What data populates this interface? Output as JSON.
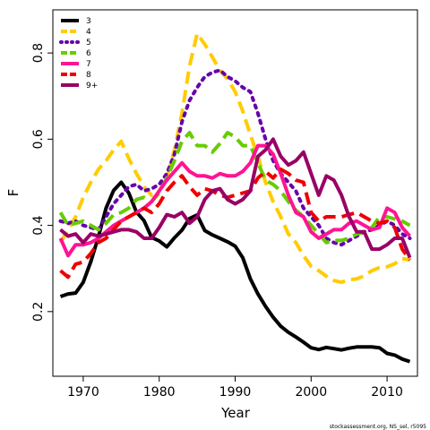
{
  "chart_data": {
    "type": "line",
    "xlabel": "Year",
    "ylabel": "F",
    "xlim": [
      1966,
      2014
    ],
    "ylim": [
      0.05,
      0.9
    ],
    "x_ticks": [
      1970,
      1980,
      1990,
      2000,
      2010
    ],
    "y_ticks": [
      0.2,
      0.4,
      0.6,
      0.8
    ],
    "legend_position": "top-left",
    "credit": "stockassessment.org, NS_sel, r5095",
    "series": [
      {
        "name": "3",
        "color": "#000000",
        "dash": "solid",
        "x": [
          1967,
          1968,
          1969,
          1970,
          1971,
          1972,
          1973,
          1974,
          1975,
          1976,
          1977,
          1978,
          1979,
          1980,
          1981,
          1982,
          1983,
          1984,
          1985,
          1986,
          1987,
          1988,
          1989,
          1990,
          1991,
          1992,
          1993,
          1994,
          1995,
          1996,
          1997,
          1998,
          1999,
          2000,
          2001,
          2002,
          2003,
          2004,
          2005,
          2006,
          2007,
          2008,
          2009,
          2010,
          2011,
          2012,
          2013
        ],
        "y": [
          0.235,
          0.241,
          0.243,
          0.268,
          0.316,
          0.374,
          0.44,
          0.481,
          0.5,
          0.475,
          0.431,
          0.411,
          0.372,
          0.364,
          0.35,
          0.371,
          0.389,
          0.416,
          0.424,
          0.388,
          0.378,
          0.37,
          0.362,
          0.352,
          0.325,
          0.276,
          0.241,
          0.212,
          0.187,
          0.166,
          0.152,
          0.141,
          0.129,
          0.116,
          0.112,
          0.117,
          0.114,
          0.111,
          0.115,
          0.118,
          0.118,
          0.118,
          0.116,
          0.103,
          0.099,
          0.09,
          0.084
        ]
      },
      {
        "name": "4",
        "color": "#ffcc00",
        "dash": "dashed",
        "x": [
          1967,
          1968,
          1969,
          1970,
          1971,
          1972,
          1973,
          1974,
          1975,
          1976,
          1977,
          1978,
          1979,
          1980,
          1981,
          1982,
          1983,
          1984,
          1985,
          1986,
          1987,
          1988,
          1989,
          1990,
          1991,
          1992,
          1993,
          1994,
          1995,
          1996,
          1997,
          1998,
          1999,
          2000,
          2001,
          2002,
          2003,
          2004,
          2005,
          2006,
          2007,
          2008,
          2009,
          2010,
          2011,
          2012,
          2013
        ],
        "y": [
          0.36,
          0.39,
          0.42,
          0.465,
          0.5,
          0.53,
          0.55,
          0.575,
          0.595,
          0.555,
          0.52,
          0.49,
          0.47,
          0.48,
          0.51,
          0.575,
          0.66,
          0.77,
          0.845,
          0.82,
          0.79,
          0.76,
          0.74,
          0.71,
          0.665,
          0.61,
          0.56,
          0.5,
          0.455,
          0.42,
          0.38,
          0.36,
          0.33,
          0.305,
          0.295,
          0.282,
          0.272,
          0.268,
          0.274,
          0.276,
          0.283,
          0.295,
          0.302,
          0.304,
          0.311,
          0.323,
          0.32
        ]
      },
      {
        "name": "5",
        "color": "#6600aa",
        "dash": "dotted",
        "x": [
          1967,
          1968,
          1969,
          1970,
          1971,
          1972,
          1973,
          1974,
          1975,
          1976,
          1977,
          1978,
          1979,
          1980,
          1981,
          1982,
          1983,
          1984,
          1985,
          1986,
          1987,
          1988,
          1989,
          1990,
          1991,
          1992,
          1993,
          1994,
          1995,
          1996,
          1997,
          1998,
          1999,
          2000,
          2001,
          2002,
          2003,
          2004,
          2005,
          2006,
          2007,
          2008,
          2009,
          2010,
          2011,
          2012,
          2013
        ],
        "y": [
          0.41,
          0.405,
          0.41,
          0.4,
          0.395,
          0.39,
          0.42,
          0.45,
          0.47,
          0.49,
          0.495,
          0.48,
          0.485,
          0.495,
          0.52,
          0.565,
          0.64,
          0.69,
          0.72,
          0.745,
          0.755,
          0.76,
          0.745,
          0.735,
          0.72,
          0.71,
          0.66,
          0.6,
          0.55,
          0.52,
          0.5,
          0.48,
          0.44,
          0.42,
          0.4,
          0.37,
          0.36,
          0.355,
          0.365,
          0.375,
          0.385,
          0.39,
          0.4,
          0.41,
          0.4,
          0.38,
          0.37
        ]
      },
      {
        "name": "6",
        "color": "#66cc00",
        "dash": "dashed",
        "x": [
          1967,
          1968,
          1969,
          1970,
          1971,
          1972,
          1973,
          1974,
          1975,
          1976,
          1977,
          1978,
          1979,
          1980,
          1981,
          1982,
          1983,
          1984,
          1985,
          1986,
          1987,
          1988,
          1989,
          1990,
          1991,
          1992,
          1993,
          1994,
          1995,
          1996,
          1997,
          1998,
          1999,
          2000,
          2001,
          2002,
          2003,
          2004,
          2005,
          2006,
          2007,
          2008,
          2009,
          2010,
          2011,
          2012,
          2013
        ],
        "y": [
          0.43,
          0.4,
          0.405,
          0.41,
          0.4,
          0.39,
          0.405,
          0.425,
          0.43,
          0.44,
          0.46,
          0.465,
          0.455,
          0.475,
          0.51,
          0.55,
          0.595,
          0.615,
          0.585,
          0.585,
          0.57,
          0.59,
          0.615,
          0.605,
          0.585,
          0.585,
          0.545,
          0.505,
          0.495,
          0.48,
          0.455,
          0.435,
          0.42,
          0.4,
          0.38,
          0.36,
          0.365,
          0.365,
          0.37,
          0.38,
          0.385,
          0.395,
          0.42,
          0.42,
          0.415,
          0.41,
          0.4
        ]
      },
      {
        "name": "7",
        "color": "#ff1493",
        "dash": "solid",
        "x": [
          1967,
          1968,
          1969,
          1970,
          1971,
          1972,
          1973,
          1974,
          1975,
          1976,
          1977,
          1978,
          1979,
          1980,
          1981,
          1982,
          1983,
          1984,
          1985,
          1986,
          1987,
          1988,
          1989,
          1990,
          1991,
          1992,
          1993,
          1994,
          1995,
          1996,
          1997,
          1998,
          1999,
          2000,
          2001,
          2002,
          2003,
          2004,
          2005,
          2006,
          2007,
          2008,
          2009,
          2010,
          2011,
          2012,
          2013
        ],
        "y": [
          0.37,
          0.33,
          0.355,
          0.355,
          0.36,
          0.37,
          0.385,
          0.4,
          0.41,
          0.42,
          0.43,
          0.44,
          0.455,
          0.48,
          0.505,
          0.525,
          0.545,
          0.525,
          0.515,
          0.515,
          0.51,
          0.52,
          0.515,
          0.515,
          0.525,
          0.545,
          0.585,
          0.585,
          0.565,
          0.52,
          0.47,
          0.43,
          0.42,
          0.385,
          0.37,
          0.38,
          0.39,
          0.39,
          0.405,
          0.41,
          0.4,
          0.39,
          0.395,
          0.44,
          0.43,
          0.395,
          0.375
        ]
      },
      {
        "name": "8",
        "color": "#ee0000",
        "dash": "dashed",
        "x": [
          1967,
          1968,
          1969,
          1970,
          1971,
          1972,
          1973,
          1974,
          1975,
          1976,
          1977,
          1978,
          1979,
          1980,
          1981,
          1982,
          1983,
          1984,
          1985,
          1986,
          1987,
          1988,
          1989,
          1990,
          1991,
          1992,
          1993,
          1994,
          1995,
          1996,
          1997,
          1998,
          1999,
          2000,
          2001,
          2002,
          2003,
          2004,
          2005,
          2006,
          2007,
          2008,
          2009,
          2010,
          2011,
          2012,
          2013
        ],
        "y": [
          0.295,
          0.28,
          0.31,
          0.315,
          0.335,
          0.36,
          0.37,
          0.39,
          0.41,
          0.42,
          0.43,
          0.44,
          0.43,
          0.45,
          0.48,
          0.5,
          0.515,
          0.49,
          0.47,
          0.485,
          0.48,
          0.47,
          0.465,
          0.47,
          0.475,
          0.48,
          0.51,
          0.525,
          0.51,
          0.53,
          0.52,
          0.505,
          0.5,
          0.43,
          0.41,
          0.42,
          0.42,
          0.42,
          0.425,
          0.43,
          0.42,
          0.41,
          0.405,
          0.41,
          0.395,
          0.345,
          0.32
        ]
      },
      {
        "name": "9+",
        "color": "#990066",
        "dash": "solid",
        "x": [
          1967,
          1968,
          1969,
          1970,
          1971,
          1972,
          1973,
          1974,
          1975,
          1976,
          1977,
          1978,
          1979,
          1980,
          1981,
          1982,
          1983,
          1984,
          1985,
          1986,
          1987,
          1988,
          1989,
          1990,
          1991,
          1992,
          1993,
          1994,
          1995,
          1996,
          1997,
          1998,
          1999,
          2000,
          2001,
          2002,
          2003,
          2004,
          2005,
          2006,
          2007,
          2008,
          2009,
          2010,
          2011,
          2012,
          2013
        ],
        "y": [
          0.39,
          0.375,
          0.38,
          0.36,
          0.38,
          0.375,
          0.38,
          0.385,
          0.39,
          0.39,
          0.385,
          0.37,
          0.37,
          0.395,
          0.425,
          0.42,
          0.43,
          0.405,
          0.42,
          0.46,
          0.48,
          0.485,
          0.46,
          0.45,
          0.46,
          0.48,
          0.56,
          0.575,
          0.6,
          0.56,
          0.54,
          0.55,
          0.57,
          0.52,
          0.47,
          0.515,
          0.505,
          0.47,
          0.42,
          0.385,
          0.385,
          0.345,
          0.345,
          0.355,
          0.37,
          0.37,
          0.325
        ]
      }
    ]
  }
}
